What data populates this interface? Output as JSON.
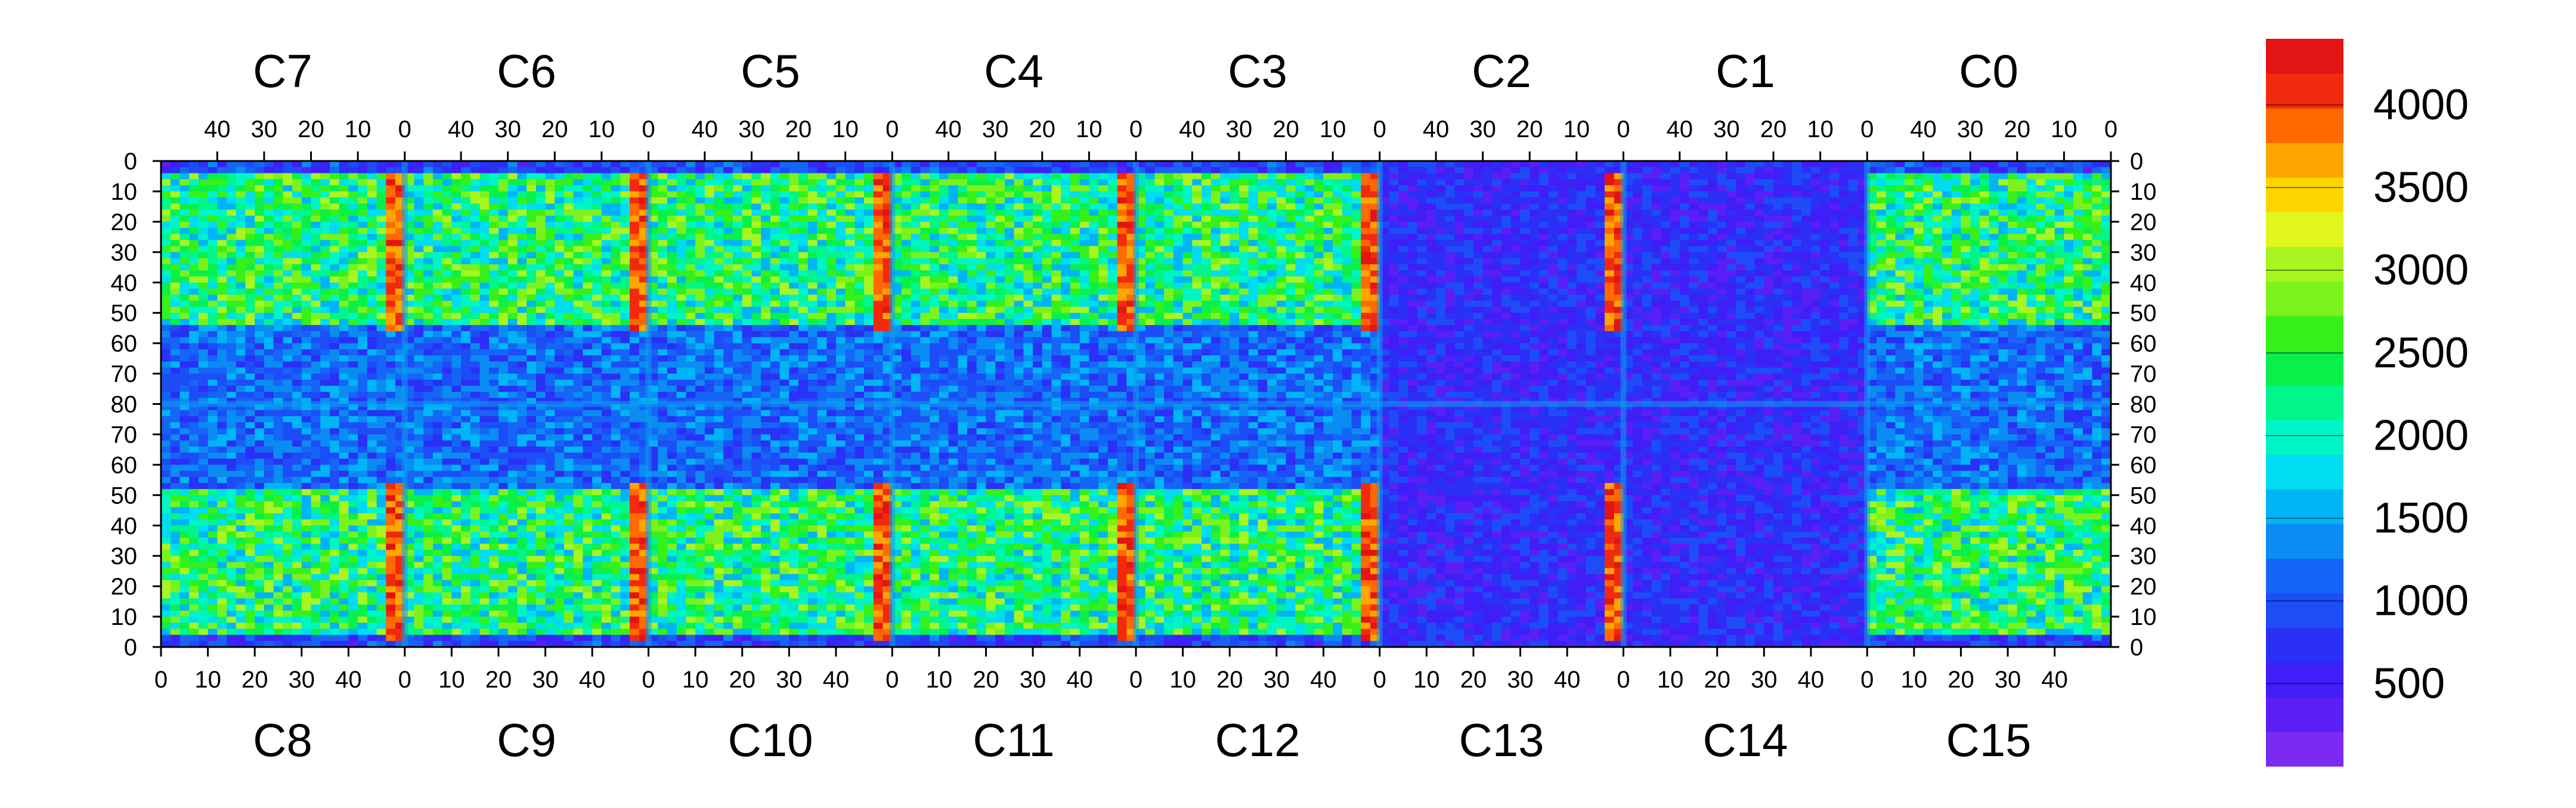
{
  "chart_data": {
    "type": "heatmap",
    "title": "",
    "xlabel": "",
    "ylabel": "",
    "top_chips": [
      "C7",
      "C6",
      "C5",
      "C4",
      "C3",
      "C2",
      "C1",
      "C0"
    ],
    "bottom_chips": [
      "C8",
      "C9",
      "C10",
      "C11",
      "C12",
      "C13",
      "C14",
      "C15"
    ],
    "top_x_ticks": [
      "40",
      "30",
      "20",
      "10",
      "0"
    ],
    "bottom_x_ticks": [
      "0",
      "10",
      "20",
      "30",
      "40"
    ],
    "top_half_y_ticks": [
      "0",
      "10",
      "20",
      "30",
      "40",
      "50",
      "60",
      "70",
      "80"
    ],
    "bottom_half_y_ticks": [
      "70",
      "60",
      "50",
      "40",
      "30",
      "20",
      "10",
      "0"
    ],
    "columns_per_chip": 52,
    "rows_per_half": 80,
    "z_range": [
      0,
      4400
    ],
    "colorbar": {
      "levels": 20,
      "ticks": [
        500,
        1000,
        1500,
        2000,
        2500,
        3000,
        3500,
        4000
      ],
      "tick_labels": [
        "500",
        "1000",
        "1500",
        "2000",
        "2500",
        "3000",
        "3500",
        "4000"
      ],
      "colors": [
        "#7b2af2",
        "#5a1ff5",
        "#3f1ef7",
        "#2a30f6",
        "#1d4df7",
        "#1565f7",
        "#0a8cf2",
        "#00b5f7",
        "#00dcf0",
        "#00f5c6",
        "#00f58a",
        "#0af04a",
        "#36f01a",
        "#7cf21c",
        "#a8f520",
        "#e1f51f",
        "#ffd500",
        "#ffa500",
        "#ff6a00",
        "#f22a0d",
        "#e31414"
      ]
    }
  }
}
